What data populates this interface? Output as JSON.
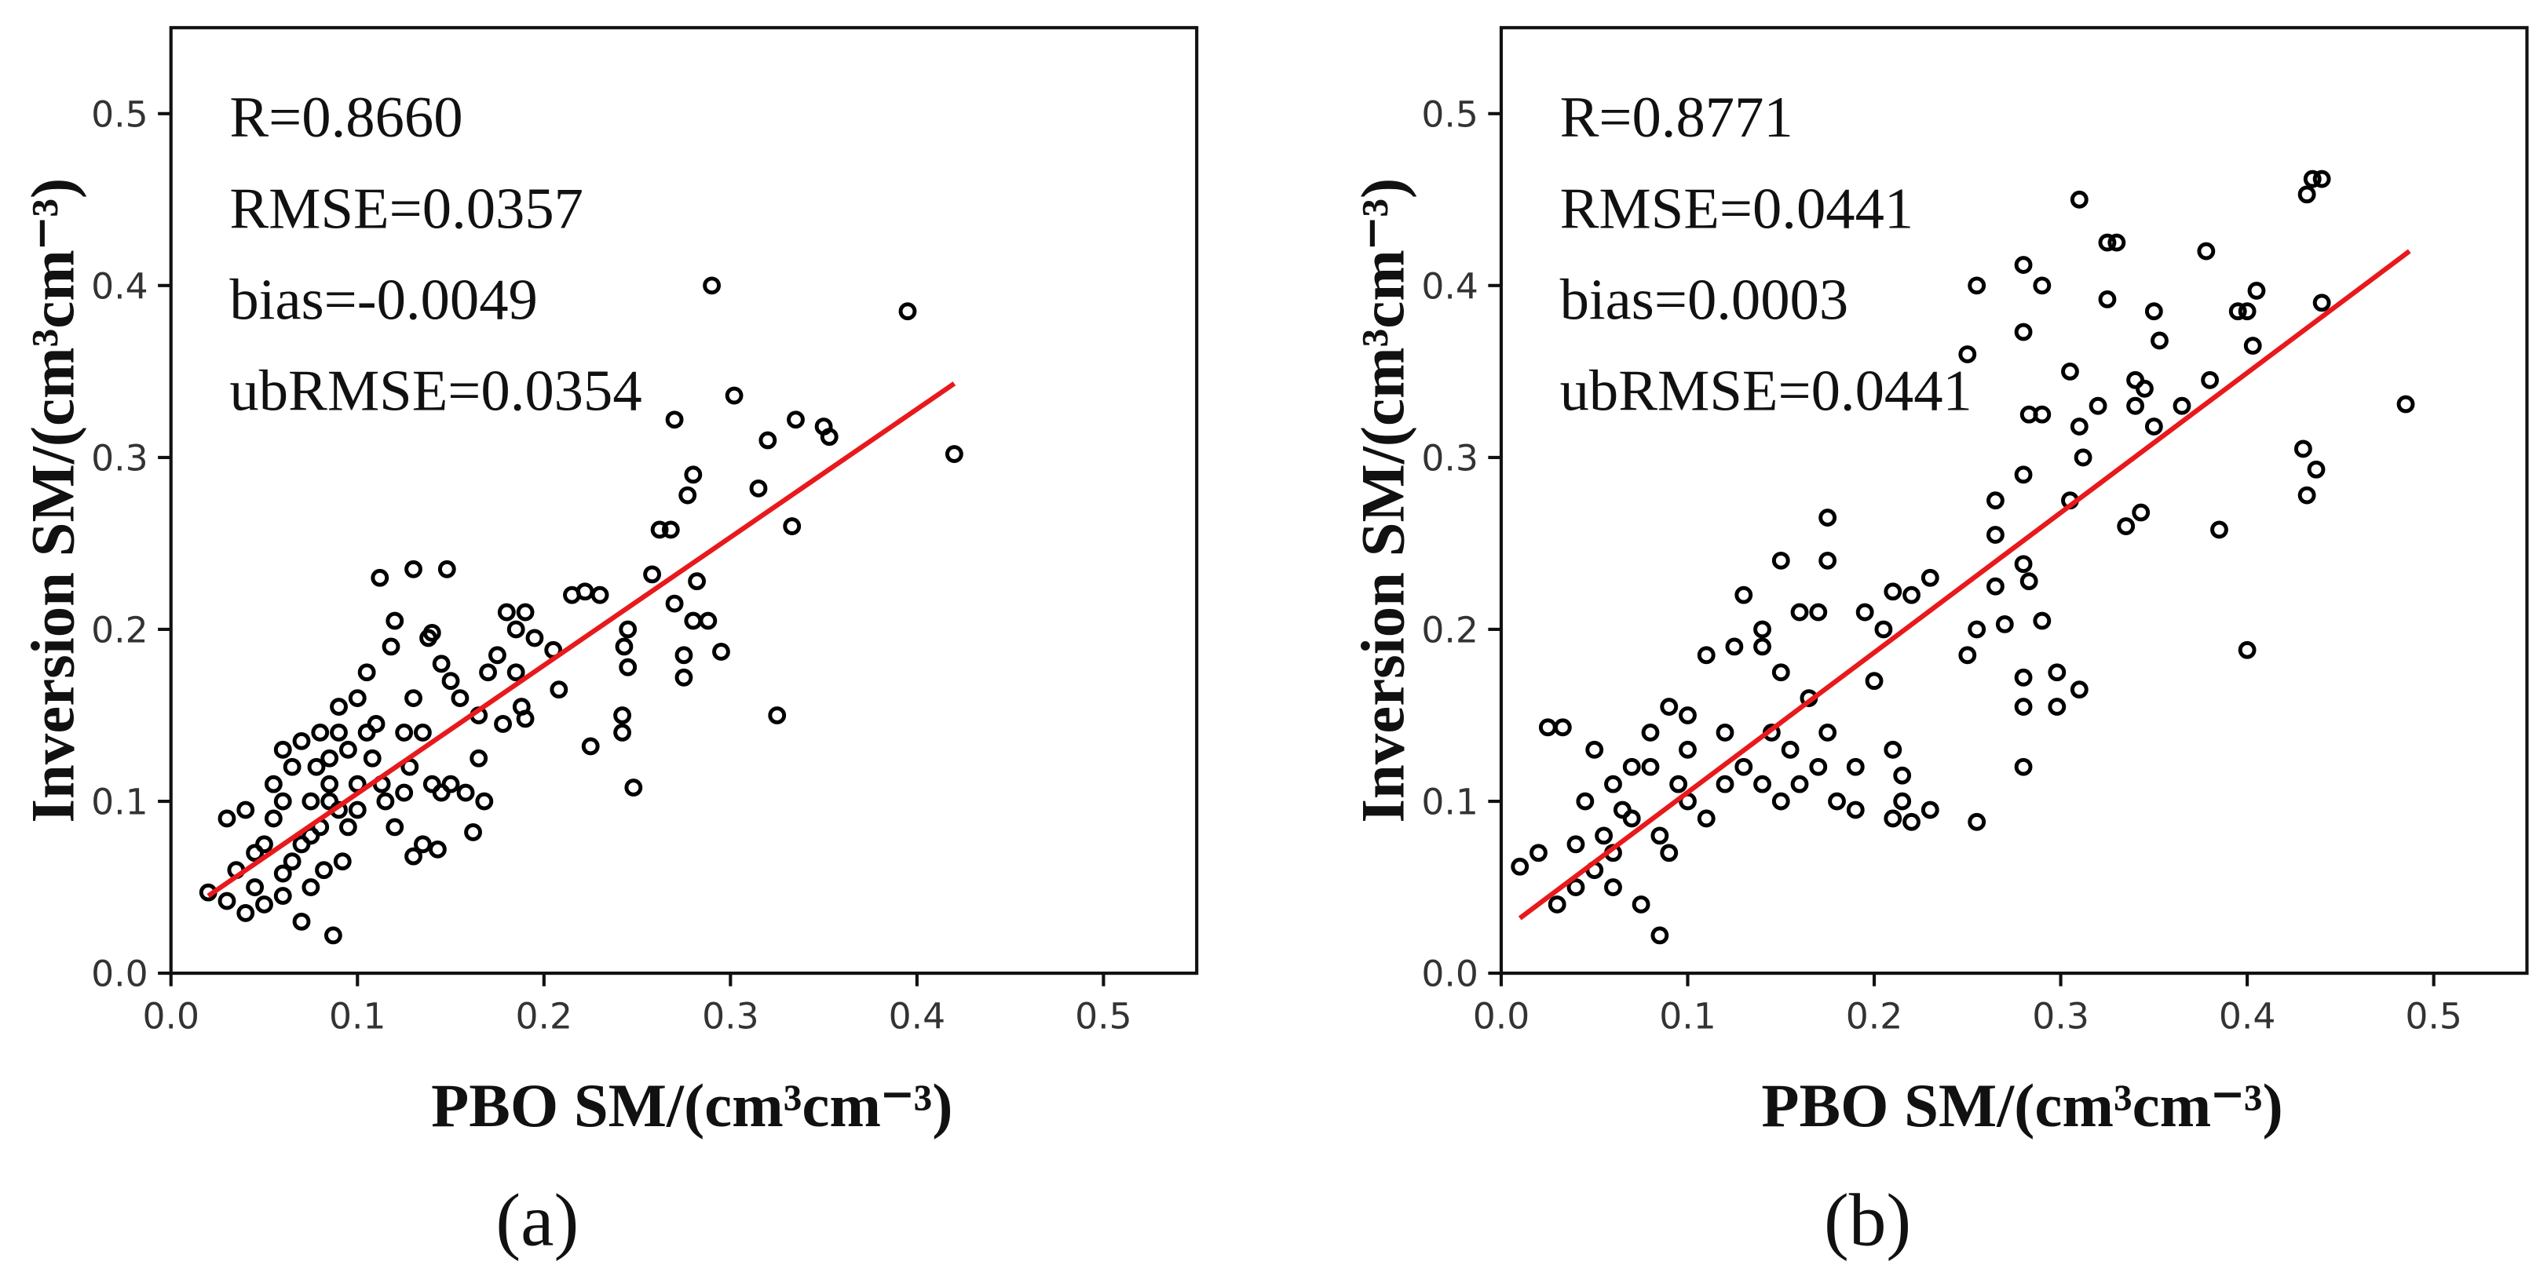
{
  "chart_data": [
    {
      "type": "scatter",
      "label": "(a)",
      "xlabel": "PBO SM/(cm³cm⁻³)",
      "ylabel": "Inversion SM/(cm³cm⁻³)",
      "annotations": [
        "R=0.8660",
        "RMSE=0.0357",
        "bias=-0.0049",
        "ubRMSE=0.0354"
      ],
      "color": "#000000",
      "xlim": [
        0,
        0.55
      ],
      "ylim": [
        0,
        0.55
      ],
      "xticks": [
        {
          "value": 0,
          "label": "0.0"
        },
        0.1,
        0.2,
        0.3,
        0.4,
        0.5
      ],
      "yticks": [
        {
          "value": 0,
          "label": "0.0"
        },
        0.1,
        0.2,
        0.3,
        0.4,
        0.5
      ],
      "x": [
        0.29,
        0.395,
        0.42,
        0.302,
        0.335,
        0.35,
        0.353,
        0.32,
        0.315,
        0.333,
        0.325,
        0.295,
        0.27,
        0.28,
        0.277,
        0.262,
        0.268,
        0.258,
        0.282,
        0.27,
        0.28,
        0.288,
        0.275,
        0.275,
        0.248,
        0.242,
        0.242,
        0.245,
        0.243,
        0.245,
        0.23,
        0.222,
        0.215,
        0.225,
        0.205,
        0.208,
        0.19,
        0.18,
        0.185,
        0.195,
        0.175,
        0.185,
        0.17,
        0.188,
        0.19,
        0.178,
        0.165,
        0.168,
        0.158,
        0.162,
        0.165,
        0.155,
        0.15,
        0.148,
        0.13,
        0.112,
        0.14,
        0.138,
        0.145,
        0.12,
        0.118,
        0.1,
        0.105,
        0.13,
        0.135,
        0.125,
        0.11,
        0.128,
        0.14,
        0.145,
        0.13,
        0.135,
        0.143,
        0.12,
        0.115,
        0.1,
        0.108,
        0.095,
        0.09,
        0.085,
        0.085,
        0.09,
        0.08,
        0.082,
        0.087,
        0.07,
        0.075,
        0.06,
        0.05,
        0.04,
        0.03,
        0.02,
        0.035,
        0.045,
        0.055,
        0.06,
        0.065,
        0.06,
        0.07,
        0.075,
        0.07,
        0.065,
        0.05,
        0.04,
        0.03,
        0.055,
        0.078,
        0.09,
        0.095,
        0.1,
        0.092,
        0.075,
        0.06,
        0.045,
        0.085,
        0.08,
        0.105,
        0.113,
        0.125,
        0.15
      ],
      "values": [
        0.4,
        0.385,
        0.302,
        0.336,
        0.322,
        0.318,
        0.312,
        0.31,
        0.282,
        0.26,
        0.15,
        0.187,
        0.322,
        0.29,
        0.278,
        0.258,
        0.258,
        0.232,
        0.228,
        0.215,
        0.205,
        0.205,
        0.185,
        0.172,
        0.108,
        0.15,
        0.14,
        0.2,
        0.19,
        0.178,
        0.22,
        0.222,
        0.22,
        0.132,
        0.188,
        0.165,
        0.21,
        0.21,
        0.2,
        0.195,
        0.185,
        0.175,
        0.175,
        0.155,
        0.148,
        0.145,
        0.15,
        0.1,
        0.105,
        0.082,
        0.125,
        0.16,
        0.17,
        0.235,
        0.235,
        0.23,
        0.198,
        0.195,
        0.18,
        0.205,
        0.19,
        0.16,
        0.175,
        0.16,
        0.14,
        0.14,
        0.145,
        0.12,
        0.11,
        0.105,
        0.068,
        0.075,
        0.072,
        0.085,
        0.1,
        0.11,
        0.125,
        0.13,
        0.14,
        0.125,
        0.11,
        0.095,
        0.085,
        0.06,
        0.022,
        0.03,
        0.05,
        0.045,
        0.04,
        0.035,
        0.042,
        0.047,
        0.06,
        0.07,
        0.09,
        0.1,
        0.12,
        0.13,
        0.135,
        0.1,
        0.075,
        0.065,
        0.075,
        0.095,
        0.09,
        0.11,
        0.12,
        0.155,
        0.085,
        0.095,
        0.065,
        0.08,
        0.058,
        0.05,
        0.1,
        0.14,
        0.14,
        0.11,
        0.105,
        0.11
      ],
      "fit_line": {
        "color": "#e8191c",
        "x": [
          0.02,
          0.42
        ],
        "values": [
          0.045,
          0.343
        ]
      }
    },
    {
      "type": "scatter",
      "label": "(b)",
      "xlabel": "PBO SM/(cm³cm⁻³)",
      "ylabel": "Inversion SM/(cm³cm⁻³)",
      "annotations": [
        "R=0.8771",
        "RMSE=0.0441",
        "bias=0.0003",
        "ubRMSE=0.0441"
      ],
      "color": "#000000",
      "xlim": [
        0,
        0.55
      ],
      "ylim": [
        0,
        0.55
      ],
      "xticks": [
        {
          "value": 0,
          "label": "0.0"
        },
        0.1,
        0.2,
        0.3,
        0.4,
        0.5
      ],
      "yticks": [
        {
          "value": 0,
          "label": "0.0"
        },
        0.1,
        0.2,
        0.3,
        0.4,
        0.5
      ],
      "x": [
        0.31,
        0.435,
        0.44,
        0.432,
        0.485,
        0.378,
        0.405,
        0.4,
        0.395,
        0.403,
        0.44,
        0.43,
        0.437,
        0.432,
        0.4,
        0.385,
        0.35,
        0.353,
        0.345,
        0.34,
        0.34,
        0.335,
        0.343,
        0.38,
        0.365,
        0.35,
        0.325,
        0.33,
        0.325,
        0.29,
        0.28,
        0.28,
        0.255,
        0.25,
        0.305,
        0.31,
        0.32,
        0.312,
        0.283,
        0.28,
        0.29,
        0.305,
        0.265,
        0.265,
        0.28,
        0.283,
        0.265,
        0.27,
        0.29,
        0.28,
        0.28,
        0.28,
        0.298,
        0.298,
        0.31,
        0.255,
        0.255,
        0.25,
        0.23,
        0.22,
        0.21,
        0.205,
        0.195,
        0.2,
        0.21,
        0.215,
        0.21,
        0.215,
        0.22,
        0.23,
        0.19,
        0.19,
        0.175,
        0.175,
        0.17,
        0.16,
        0.15,
        0.14,
        0.14,
        0.15,
        0.13,
        0.125,
        0.11,
        0.1,
        0.09,
        0.08,
        0.07,
        0.06,
        0.05,
        0.04,
        0.03,
        0.02,
        0.01,
        0.025,
        0.033,
        0.05,
        0.045,
        0.06,
        0.07,
        0.08,
        0.085,
        0.09,
        0.085,
        0.075,
        0.1,
        0.11,
        0.12,
        0.13,
        0.14,
        0.15,
        0.16,
        0.17,
        0.18,
        0.175,
        0.165,
        0.155,
        0.145,
        0.12,
        0.1,
        0.095,
        0.065,
        0.055,
        0.04,
        0.06
      ],
      "values": [
        0.45,
        0.462,
        0.462,
        0.453,
        0.331,
        0.42,
        0.397,
        0.385,
        0.385,
        0.365,
        0.39,
        0.305,
        0.293,
        0.278,
        0.188,
        0.258,
        0.385,
        0.368,
        0.34,
        0.345,
        0.33,
        0.26,
        0.268,
        0.345,
        0.33,
        0.318,
        0.425,
        0.425,
        0.392,
        0.4,
        0.412,
        0.373,
        0.4,
        0.36,
        0.35,
        0.318,
        0.33,
        0.3,
        0.325,
        0.29,
        0.325,
        0.275,
        0.275,
        0.255,
        0.238,
        0.228,
        0.225,
        0.203,
        0.205,
        0.172,
        0.155,
        0.12,
        0.155,
        0.175,
        0.165,
        0.088,
        0.2,
        0.185,
        0.23,
        0.22,
        0.222,
        0.2,
        0.21,
        0.17,
        0.13,
        0.115,
        0.09,
        0.1,
        0.088,
        0.095,
        0.095,
        0.12,
        0.265,
        0.24,
        0.21,
        0.21,
        0.24,
        0.2,
        0.19,
        0.175,
        0.22,
        0.19,
        0.185,
        0.15,
        0.155,
        0.12,
        0.09,
        0.07,
        0.06,
        0.05,
        0.04,
        0.07,
        0.062,
        0.143,
        0.143,
        0.13,
        0.1,
        0.11,
        0.12,
        0.14,
        0.08,
        0.07,
        0.022,
        0.04,
        0.1,
        0.09,
        0.11,
        0.12,
        0.11,
        0.1,
        0.11,
        0.12,
        0.1,
        0.14,
        0.16,
        0.13,
        0.14,
        0.14,
        0.13,
        0.11,
        0.095,
        0.08,
        0.075,
        0.05
      ],
      "fit_line": {
        "color": "#e8191c",
        "x": [
          0.01,
          0.487
        ],
        "values": [
          0.032,
          0.42
        ]
      }
    }
  ]
}
